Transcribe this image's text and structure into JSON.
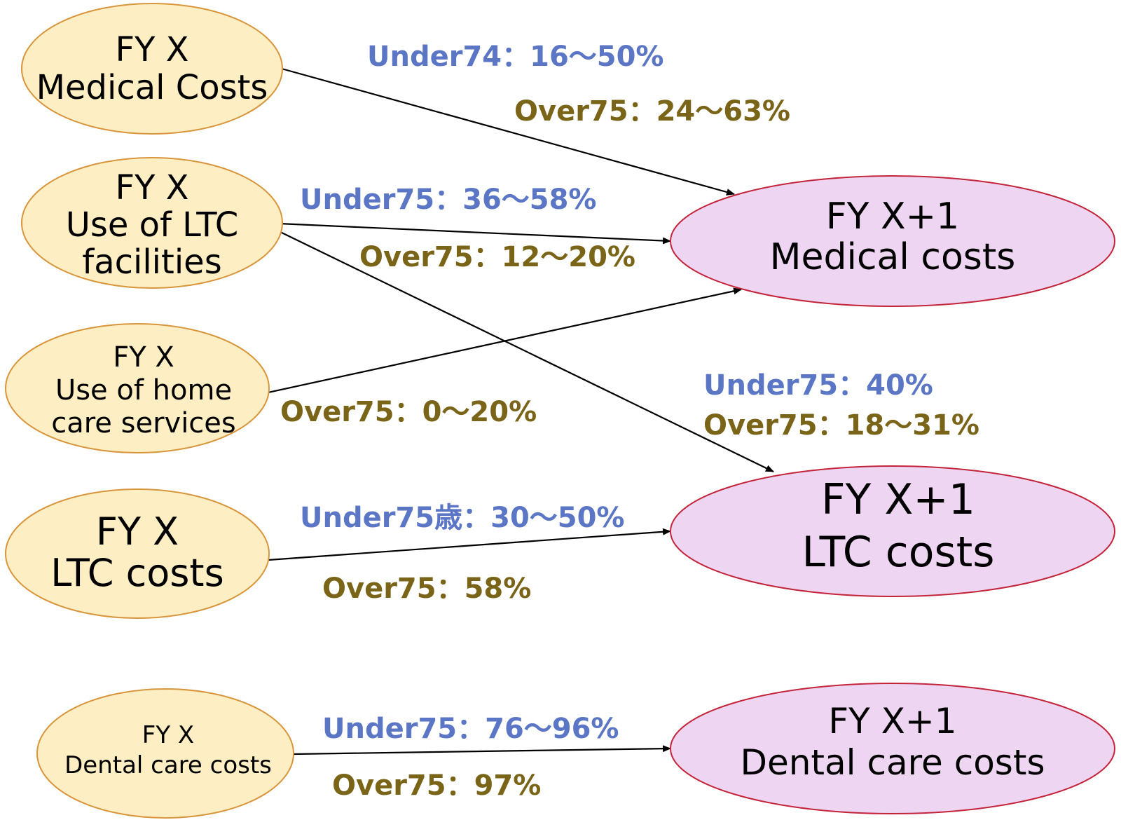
{
  "nodes": {
    "src_medical": [
      "FY X",
      "Medical Costs"
    ],
    "src_ltc_facilities": [
      "FY X",
      "Use of LTC",
      "facilities"
    ],
    "src_home_care": [
      "FY X",
      "Use of home",
      "care services"
    ],
    "src_ltc_costs": [
      "FY X",
      "LTC costs"
    ],
    "src_dental": [
      "FY X",
      "Dental care costs"
    ],
    "dst_medical": [
      "FY X+1",
      "Medical costs"
    ],
    "dst_ltc": [
      "FY  X+1",
      "LTC costs"
    ],
    "dst_dental": [
      "FY X+1",
      "Dental care costs"
    ]
  },
  "labels": {
    "medical_under": "Under74：16～50%",
    "medical_over": "Over75：24～63%",
    "facilities_under": "Under75：36～58%",
    "facilities_over": "Over75：12～20%",
    "home_over": "Over75：0～20%",
    "facilities_ltc_under": "Under75：40%",
    "facilities_ltc_over": "Over75：18～31%",
    "ltc_under": "Under75歳：30～50%",
    "ltc_over": "Over75：58%",
    "dental_under": "Under75：76～96%",
    "dental_over": "Over75：97%"
  },
  "colors": {
    "source_fill": "#fdefc3",
    "source_stroke": "#d8953c",
    "target_fill": "#eed6f2",
    "target_stroke": "#c3243a",
    "under_label": "#5a76c4",
    "over_label": "#7a6418"
  }
}
